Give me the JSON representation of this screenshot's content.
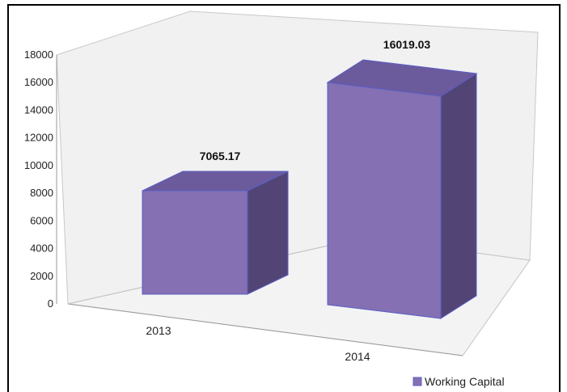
{
  "chart_data": {
    "type": "bar",
    "style": "3d-column",
    "categories": [
      "2013",
      "2014"
    ],
    "series": [
      {
        "name": "Working Capital",
        "values": [
          7065.17,
          16019.03
        ]
      }
    ],
    "data_labels": [
      "7065.17",
      "16019.03"
    ],
    "y_ticks": [
      "0",
      "2000",
      "4000",
      "6000",
      "8000",
      "10000",
      "12000",
      "14000",
      "16000",
      "18000"
    ],
    "ylim": [
      0,
      18000
    ],
    "grid": false,
    "legend": {
      "position": "bottom-right",
      "entries": [
        "Working Capital"
      ]
    },
    "colors": {
      "front": "#8470b2",
      "top": "#6b5a9c",
      "side": "#524575",
      "edge": "#5b5fc7"
    }
  }
}
